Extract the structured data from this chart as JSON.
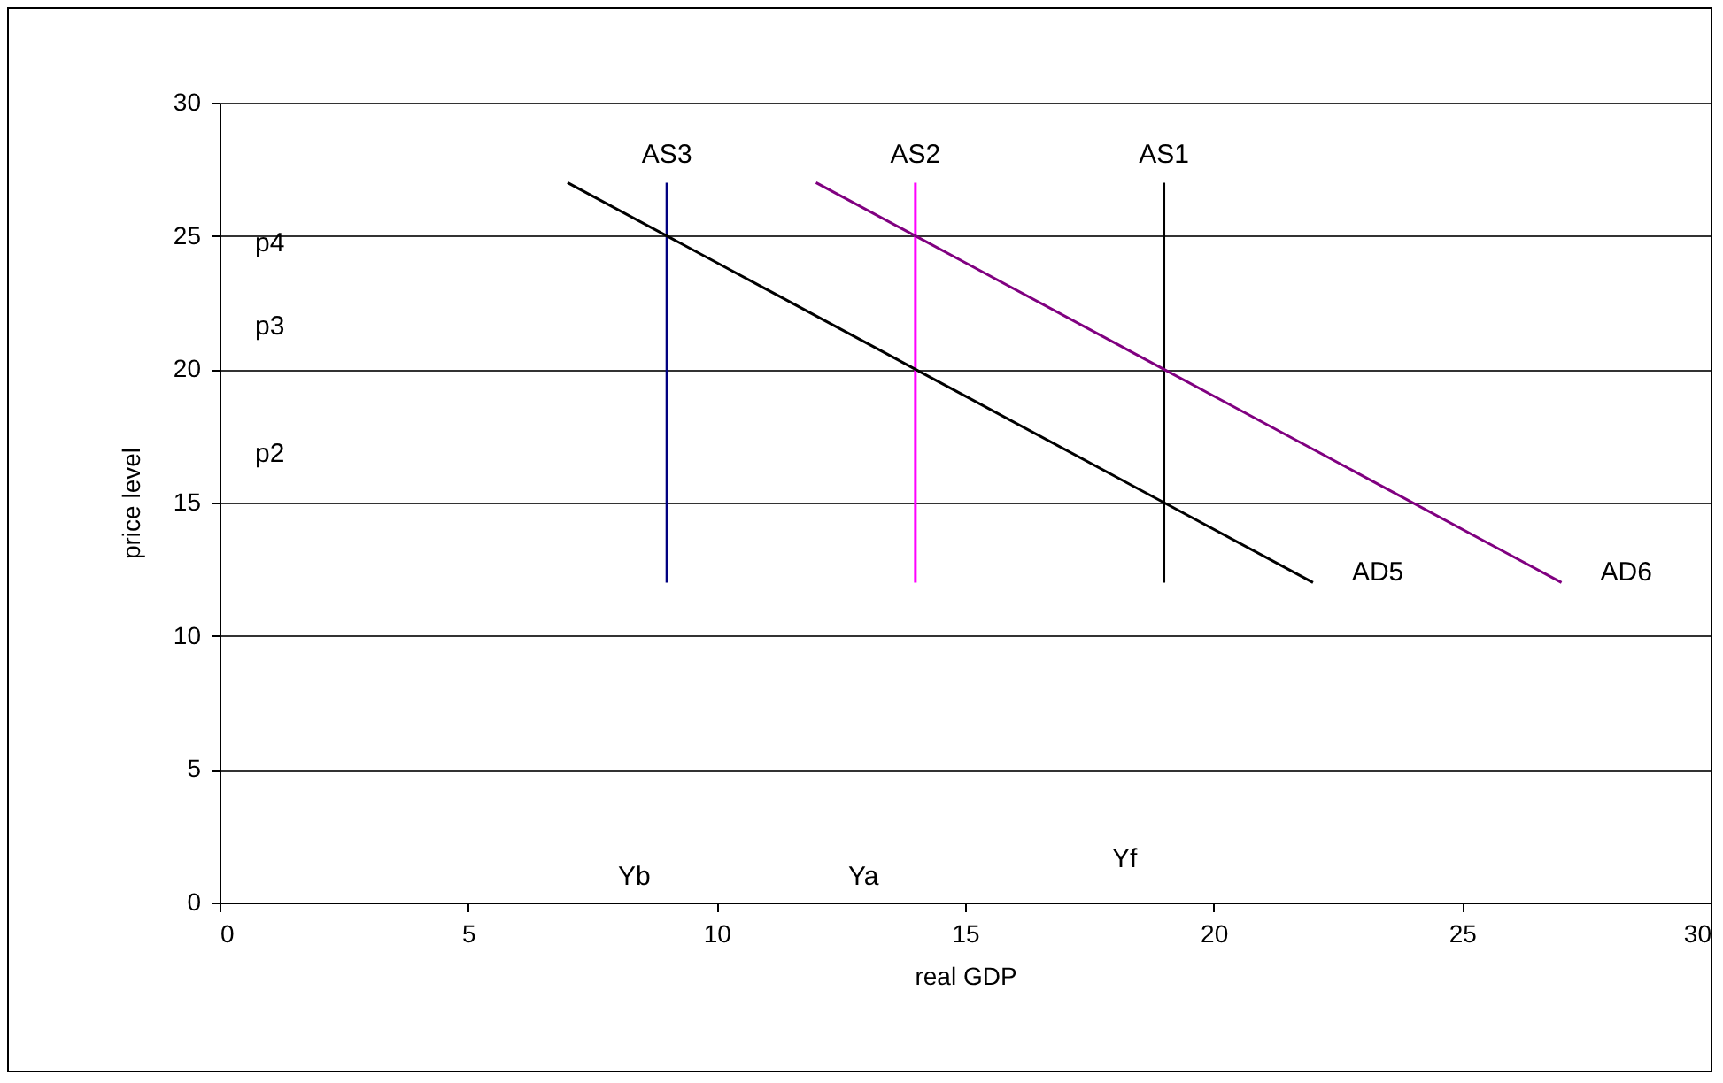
{
  "chart_data": {
    "type": "line",
    "xlabel": "real GDP",
    "ylabel": "price level",
    "xlim": [
      0,
      30
    ],
    "ylim": [
      0,
      30
    ],
    "xticks": [
      0,
      5,
      10,
      15,
      20,
      25,
      30
    ],
    "yticks": [
      0,
      5,
      10,
      15,
      20,
      25,
      30
    ],
    "grid": "y",
    "legend": false,
    "marker": "none",
    "line_style": "solid",
    "series": [
      {
        "name": "AS3",
        "color": "#000080",
        "x": [
          9,
          9
        ],
        "values": [
          12,
          27
        ]
      },
      {
        "name": "AS2",
        "color": "#ff00ff",
        "x": [
          14,
          14
        ],
        "values": [
          12,
          27
        ]
      },
      {
        "name": "AS1",
        "color": "#000000",
        "x": [
          19,
          19
        ],
        "values": [
          12,
          27
        ]
      },
      {
        "name": "AD5",
        "color": "#000000",
        "x": [
          7,
          9,
          10,
          11,
          14,
          19,
          22
        ],
        "values": [
          27,
          25,
          24,
          23,
          20,
          15,
          12
        ]
      },
      {
        "name": "AD6",
        "color": "#800080",
        "x": [
          12,
          14,
          15,
          19,
          20,
          22,
          23,
          26,
          27
        ],
        "values": [
          27,
          25,
          24,
          20,
          19,
          17,
          16,
          13,
          12
        ]
      }
    ],
    "annotations": [
      "p4",
      "p3",
      "p2",
      "Yb",
      "Ya",
      "Yf"
    ]
  }
}
